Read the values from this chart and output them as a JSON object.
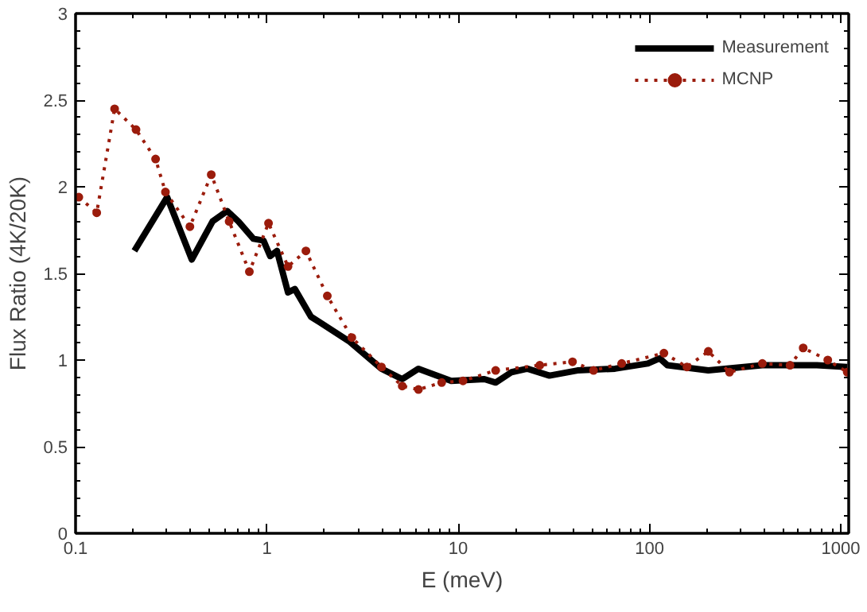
{
  "chart_data": {
    "type": "line",
    "xlabel": "E (meV)",
    "ylabel": "Flux Ratio (4K/20K)",
    "log": "x",
    "xlim": [
      0.1,
      1100
    ],
    "xticks": [
      0.1,
      1,
      10,
      100,
      1000
    ],
    "ylim": [
      0,
      3
    ],
    "yticks": [
      0,
      0.5,
      1,
      1.5,
      2,
      2.5,
      3
    ],
    "grid": false,
    "legend": "top right",
    "series": [
      {
        "name": "Measurement",
        "color": "#000000",
        "marker": "none",
        "line_style": "solid",
        "x": [
          0.203,
          0.301,
          0.405,
          0.52,
          0.62,
          0.71,
          0.85,
          0.96,
          1.04,
          1.13,
          1.29,
          1.4,
          1.7,
          1.88,
          2.68,
          3.97,
          5.1,
          6.2,
          9.2,
          13.7,
          15.7,
          19,
          23,
          30,
          42,
          66,
          98,
          113,
          124,
          203,
          389,
          750,
          1081
        ],
        "values": [
          1.63,
          1.94,
          1.58,
          1.8,
          1.86,
          1.8,
          1.7,
          1.69,
          1.6,
          1.63,
          1.39,
          1.41,
          1.25,
          1.22,
          1.11,
          0.95,
          0.89,
          0.95,
          0.88,
          0.89,
          0.87,
          0.93,
          0.95,
          0.91,
          0.94,
          0.95,
          0.98,
          1.01,
          0.97,
          0.94,
          0.97,
          0.97,
          0.96
        ]
      },
      {
        "name": "MCNP",
        "color": "#9b1c0c",
        "marker": "circle",
        "line_style": "dotted",
        "x": [
          0.104,
          0.129,
          0.16,
          0.207,
          0.262,
          0.295,
          0.396,
          0.512,
          0.635,
          0.81,
          1.02,
          1.29,
          1.6,
          2.07,
          2.78,
          3.97,
          5.1,
          6.2,
          8.2,
          10.6,
          15.7,
          26.7,
          39.6,
          51,
          71.6,
          119,
          157,
          203,
          262,
          389,
          543,
          636,
          855,
          1081
        ],
        "values": [
          1.94,
          1.85,
          2.45,
          2.33,
          2.16,
          1.97,
          1.77,
          2.07,
          1.8,
          1.51,
          1.79,
          1.54,
          1.63,
          1.37,
          1.13,
          0.96,
          0.85,
          0.83,
          0.87,
          0.88,
          0.94,
          0.97,
          0.99,
          0.94,
          0.98,
          1.04,
          0.96,
          1.05,
          0.93,
          0.98,
          0.97,
          1.07,
          1.0,
          0.93
        ]
      }
    ]
  }
}
